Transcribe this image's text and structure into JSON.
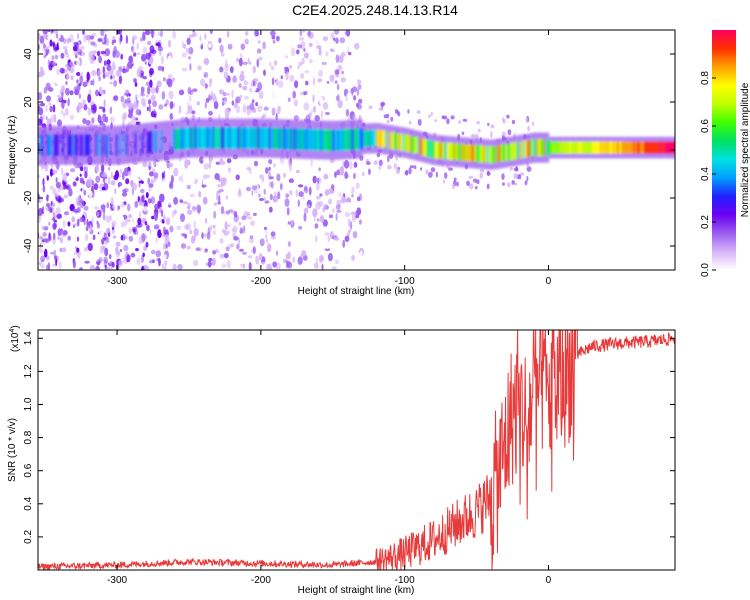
{
  "title": "C2E4.2025.248.14.13.R14",
  "chart_data": [
    {
      "type": "heatmap",
      "xlabel": "Height of straight line (km)",
      "ylabel": "Frequency (Hz)",
      "xlim": [
        -355,
        88
      ],
      "ylim": [
        -50,
        50
      ],
      "xticks": [
        -300,
        -200,
        -100,
        0
      ],
      "yticks": [
        -40,
        -20,
        0,
        20,
        40
      ],
      "colorbar": {
        "label": "Normalized spectral amplitude",
        "range": [
          0,
          1
        ],
        "ticks": [
          "0.0",
          "0.2",
          "0.4",
          "0.6",
          "0.8"
        ],
        "colors": [
          "#ffffff",
          "#d8b4f8",
          "#9a5cf0",
          "#6a00f0",
          "#2020ff",
          "#00a0ff",
          "#00e0e0",
          "#00e060",
          "#40ff00",
          "#c0ff00",
          "#ffff00",
          "#ffa000",
          "#ff3000",
          "#ff0060"
        ]
      },
      "ridge": {
        "height_km": [
          -355,
          -300,
          -250,
          -200,
          -150,
          -120,
          -100,
          -80,
          -60,
          -40,
          -30,
          -20,
          -10,
          0,
          20,
          50,
          88
        ],
        "frequency_hz": [
          2,
          2,
          5,
          5,
          4,
          5,
          3,
          0,
          -1,
          -2,
          -1,
          0,
          1,
          1,
          1,
          1,
          1
        ]
      }
    },
    {
      "type": "line",
      "xlabel": "Height of straight line (km)",
      "ylabel": "SNR (10 * v/v)",
      "yscale_label": "(x10",
      "yscale_exp": "4",
      "xlim": [
        -355,
        88
      ],
      "ylim": [
        0,
        1.45
      ],
      "xticks": [
        -300,
        -200,
        -100,
        0
      ],
      "yticks": [
        "0.2",
        "0.4",
        "0.6",
        "0.8",
        "1.0",
        "1.2",
        "1.4"
      ],
      "line_color": "#e83a3a",
      "x": [
        -355,
        -300,
        -250,
        -200,
        -150,
        -120,
        -100,
        -80,
        -60,
        -50,
        -40,
        -35,
        -30,
        -25,
        -20,
        -15,
        -10,
        -5,
        0,
        10,
        20,
        30,
        50,
        70,
        88
      ],
      "y": [
        0.02,
        0.03,
        0.05,
        0.04,
        0.03,
        0.05,
        0.1,
        0.18,
        0.3,
        0.35,
        0.45,
        0.55,
        0.75,
        0.95,
        1.0,
        0.9,
        1.05,
        1.15,
        1.05,
        1.15,
        1.3,
        1.35,
        1.37,
        1.38,
        1.4
      ]
    }
  ]
}
